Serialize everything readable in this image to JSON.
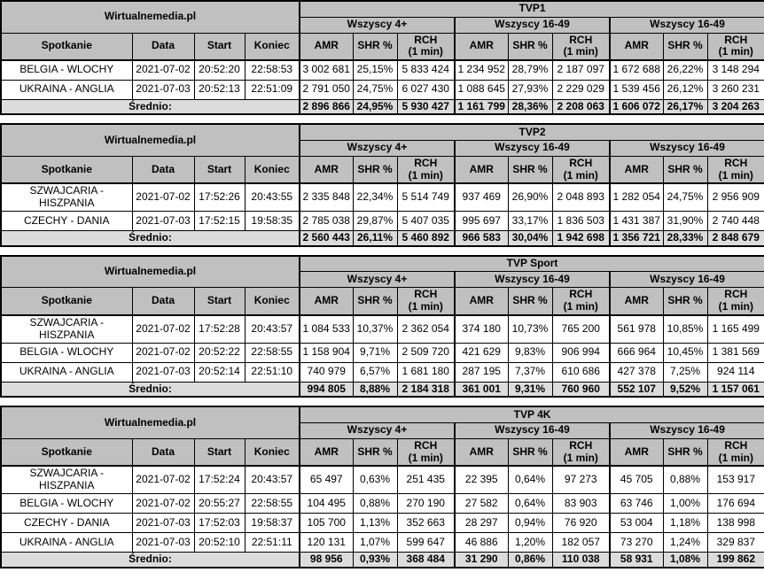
{
  "brand": "Wirtualnemedia.pl",
  "columns": {
    "left": [
      "Spotkanie",
      "Data",
      "Start",
      "Koniec"
    ],
    "metrics": [
      "AMR",
      "SHR %",
      "RCH\n(1 min)"
    ]
  },
  "average_label": "Średnio:",
  "colors": {
    "header_bg": "#c0c0c0",
    "average_bg": "#dcdcdc",
    "border": "#000000",
    "row_bg": "#ffffff"
  },
  "tables": [
    {
      "channel": "TVP1",
      "groups": [
        "Wszyscy 4+",
        "Wszyscy 16-49",
        "Wszyscy 16-49"
      ],
      "rows": [
        {
          "match": "BELGIA - WLOCHY",
          "date": "2021-07-02",
          "start": "20:52:20",
          "end": "22:58:53",
          "values": [
            "3 002 681",
            "25,15%",
            "5 833 424",
            "1 234 952",
            "28,79%",
            "2 187 097",
            "1 672 688",
            "26,22%",
            "3 148 294"
          ]
        },
        {
          "match": "UKRAINA - ANGLIA",
          "date": "2021-07-03",
          "start": "20:52:13",
          "end": "22:51:09",
          "values": [
            "2 791 050",
            "24,75%",
            "6 027 430",
            "1 088 645",
            "27,93%",
            "2 229 029",
            "1 539 456",
            "26,12%",
            "3 260 231"
          ]
        }
      ],
      "average": [
        "2 896 866",
        "24,95%",
        "5 930 427",
        "1 161 799",
        "28,36%",
        "2 208 063",
        "1 606 072",
        "26,17%",
        "3 204 263"
      ]
    },
    {
      "channel": "TVP2",
      "groups": [
        "Wszyscy 4+",
        "Wszyscy 16-49",
        "Wszyscy 16-49"
      ],
      "rows": [
        {
          "match": "SZWAJCARIA - HISZPANIA",
          "date": "2021-07-02",
          "start": "17:52:26",
          "end": "20:43:55",
          "values": [
            "2 335 848",
            "22,34%",
            "5 514 749",
            "937 469",
            "26,90%",
            "2 048 893",
            "1 282 054",
            "24,75%",
            "2 956 909"
          ]
        },
        {
          "match": "CZECHY - DANIA",
          "date": "2021-07-03",
          "start": "17:52:15",
          "end": "19:58:35",
          "values": [
            "2 785 038",
            "29,87%",
            "5 407 035",
            "995 697",
            "33,17%",
            "1 836 503",
            "1 431 387",
            "31,90%",
            "2 740 448"
          ]
        }
      ],
      "average": [
        "2 560 443",
        "26,11%",
        "5 460 892",
        "966 583",
        "30,04%",
        "1 942 698",
        "1 356 721",
        "28,33%",
        "2 848 679"
      ]
    },
    {
      "channel": "TVP Sport",
      "groups": [
        "Wszyscy 4+",
        "Wszyscy 16-49",
        "Wszyscy 16-49"
      ],
      "rows": [
        {
          "match": "SZWAJCARIA - HISZPANIA",
          "date": "2021-07-02",
          "start": "17:52:28",
          "end": "20:43:57",
          "values": [
            "1 084 533",
            "10,37%",
            "2 362 054",
            "374 180",
            "10,73%",
            "765 200",
            "561 978",
            "10,85%",
            "1 165 499"
          ]
        },
        {
          "match": "BELGIA - WLOCHY",
          "date": "2021-07-02",
          "start": "20:52:22",
          "end": "22:58:55",
          "values": [
            "1 158 904",
            "9,71%",
            "2 509 720",
            "421 629",
            "9,83%",
            "906 994",
            "666 964",
            "10,45%",
            "1 381 569"
          ]
        },
        {
          "match": "UKRAINA - ANGLIA",
          "date": "2021-07-03",
          "start": "20:52:14",
          "end": "22:51:10",
          "values": [
            "740 979",
            "6,57%",
            "1 681 180",
            "287 195",
            "7,37%",
            "610 686",
            "427 378",
            "7,25%",
            "924 114"
          ]
        }
      ],
      "average": [
        "994 805",
        "8,88%",
        "2 184 318",
        "361 001",
        "9,31%",
        "760 960",
        "552 107",
        "9,52%",
        "1 157 061"
      ]
    },
    {
      "channel": "TVP 4K",
      "groups": [
        "Wszyscy 4+",
        "Wszyscy 16-49",
        "Wszyscy 16-49"
      ],
      "rows": [
        {
          "match": "SZWAJCARIA - HISZPANIA",
          "date": "2021-07-02",
          "start": "17:52:24",
          "end": "20:43:57",
          "values": [
            "65 497",
            "0,63%",
            "251 435",
            "22 395",
            "0,64%",
            "97 273",
            "45 705",
            "0,88%",
            "153 917"
          ]
        },
        {
          "match": "BELGIA - WLOCHY",
          "date": "2021-07-02",
          "start": "20:55:27",
          "end": "22:58:55",
          "values": [
            "104 495",
            "0,88%",
            "270 190",
            "27 582",
            "0,64%",
            "83 903",
            "63 746",
            "1,00%",
            "176 694"
          ]
        },
        {
          "match": "CZECHY - DANIA",
          "date": "2021-07-03",
          "start": "17:52:03",
          "end": "19:58:37",
          "values": [
            "105 700",
            "1,13%",
            "352 663",
            "28 297",
            "0,94%",
            "76 920",
            "53 004",
            "1,18%",
            "138 998"
          ]
        },
        {
          "match": "UKRAINA - ANGLIA",
          "date": "2021-07-03",
          "start": "20:52:10",
          "end": "22:51:11",
          "values": [
            "120 131",
            "1,07%",
            "599 647",
            "46 886",
            "1,20%",
            "182 057",
            "73 270",
            "1,24%",
            "329 837"
          ]
        }
      ],
      "average": [
        "98 956",
        "0,93%",
        "368 484",
        "31 290",
        "0,86%",
        "110 038",
        "58 931",
        "1,08%",
        "199 862"
      ]
    }
  ]
}
